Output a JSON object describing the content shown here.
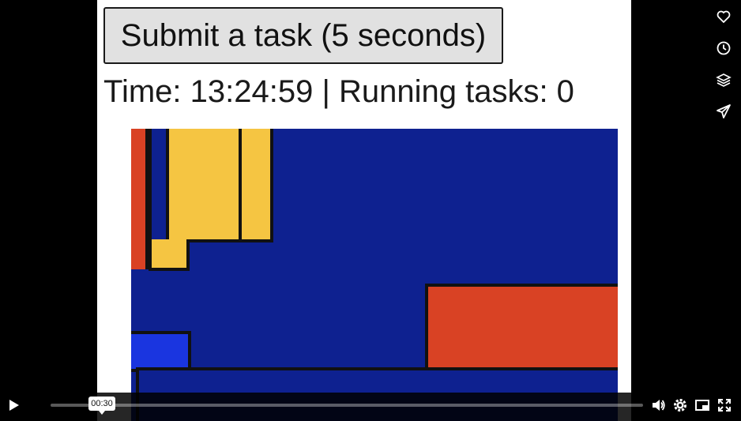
{
  "page": {
    "submit_button_label": "Submit a task (5 seconds)",
    "status": {
      "time_label": "Time: ",
      "time_value": "13:24:59",
      "separator": " | ",
      "tasks_label": "Running tasks: ",
      "tasks_value": "0"
    }
  },
  "colors": {
    "navy": "#0e2190",
    "blue": "#1a35e0",
    "red": "#d94224",
    "yellow": "#f5c542",
    "border": "#111111"
  },
  "player": {
    "current_time": "00:30",
    "icons": {
      "play": "play-icon",
      "volume": "volume-icon",
      "settings": "gear-icon",
      "pip": "picture-in-picture-icon",
      "fullscreen": "fullscreen-icon",
      "like": "heart-icon",
      "watch_later": "clock-icon",
      "collections": "layers-icon",
      "share": "paper-plane-icon"
    }
  }
}
